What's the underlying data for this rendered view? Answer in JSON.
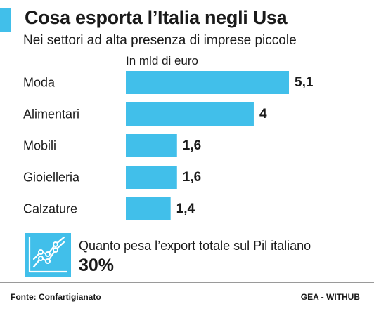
{
  "colors": {
    "accent": "#41bfea",
    "bar": "#41bfea",
    "text": "#1a1a1a",
    "rule": "#9a9a9a"
  },
  "header": {
    "title": "Cosa esporta l’Italia negli Usa",
    "subtitle": "Nei settori ad alta presenza di imprese piccole",
    "unit_label": "In mld di euro"
  },
  "chart_data": {
    "type": "bar",
    "orientation": "horizontal",
    "categories": [
      "Moda",
      "Alimentari",
      "Mobili",
      "Gioielleria",
      "Calzature"
    ],
    "values": [
      5.1,
      4,
      1.6,
      1.6,
      1.4
    ],
    "value_labels": [
      "5,1",
      "4",
      "1,6",
      "1,6",
      "1,4"
    ],
    "xlim": [
      0,
      5.1
    ],
    "grid": false,
    "legend": "none"
  },
  "kpi": {
    "icon": "line-chart-icon",
    "label": "Quanto pesa l’export totale sul Pil italiano",
    "value": "30%"
  },
  "footer": {
    "source": "Fonte: Confartigianato",
    "credit": "GEA - WITHUB"
  }
}
